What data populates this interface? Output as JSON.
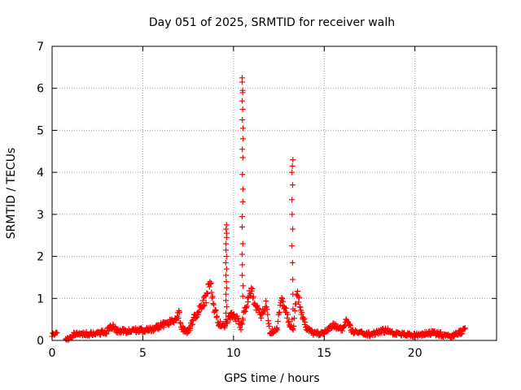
{
  "chart_data": {
    "type": "scatter",
    "title": "Day 051 of 2025, SRMTID for receiver walh",
    "xlabel": "GPS time / hours",
    "ylabel": "SRMTID / TECUs",
    "xlim": [
      0,
      24.5
    ],
    "ylim": [
      0,
      7
    ],
    "xticks": [
      0,
      5,
      10,
      15,
      20
    ],
    "yticks": [
      0,
      1,
      2,
      3,
      4,
      5,
      6,
      7
    ],
    "grid": true,
    "marker": "+",
    "color": "#ff0000",
    "series": [
      {
        "name": "SRMTID",
        "profile": [
          [
            0.0,
            0.15
          ],
          [
            0.2,
            0.18
          ],
          [
            0.8,
            0.02
          ],
          [
            1.2,
            0.15
          ],
          [
            2.0,
            0.16
          ],
          [
            3.0,
            0.2
          ],
          [
            3.3,
            0.35
          ],
          [
            3.6,
            0.22
          ],
          [
            4.5,
            0.24
          ],
          [
            5.5,
            0.25
          ],
          [
            6.0,
            0.35
          ],
          [
            6.5,
            0.45
          ],
          [
            6.8,
            0.5
          ],
          [
            7.0,
            0.65
          ],
          [
            7.1,
            0.3
          ],
          [
            7.5,
            0.2
          ],
          [
            7.9,
            0.6
          ],
          [
            8.2,
            0.8
          ],
          [
            8.5,
            1.0
          ],
          [
            8.7,
            1.4
          ],
          [
            8.9,
            0.8
          ],
          [
            9.2,
            0.4
          ],
          [
            9.5,
            0.35
          ],
          [
            9.9,
            0.6
          ],
          [
            10.2,
            0.5
          ],
          [
            10.4,
            0.3
          ],
          [
            10.8,
            1.0
          ],
          [
            11.0,
            1.2
          ],
          [
            11.2,
            0.8
          ],
          [
            11.5,
            0.6
          ],
          [
            11.8,
            0.9
          ],
          [
            12.0,
            0.2
          ],
          [
            12.4,
            0.25
          ],
          [
            12.6,
            0.95
          ],
          [
            12.9,
            0.7
          ],
          [
            13.1,
            0.35
          ],
          [
            13.3,
            0.25
          ],
          [
            13.5,
            1.2
          ],
          [
            13.7,
            0.7
          ],
          [
            14.0,
            0.3
          ],
          [
            14.5,
            0.15
          ],
          [
            15.0,
            0.2
          ],
          [
            15.5,
            0.35
          ],
          [
            16.0,
            0.25
          ],
          [
            16.2,
            0.45
          ],
          [
            16.6,
            0.2
          ],
          [
            17.5,
            0.15
          ],
          [
            18.0,
            0.2
          ],
          [
            18.5,
            0.25
          ],
          [
            19.0,
            0.15
          ],
          [
            20.0,
            0.12
          ],
          [
            21.0,
            0.18
          ],
          [
            22.0,
            0.1
          ],
          [
            22.5,
            0.2
          ],
          [
            22.8,
            0.25
          ]
        ],
        "spikes": [
          {
            "x": 9.6,
            "y_values": [
              2.75,
              2.65,
              2.55,
              2.45,
              2.3,
              2.15,
              2.0,
              1.85,
              1.7,
              1.55,
              1.4,
              1.25,
              1.1,
              0.95,
              0.8,
              0.65,
              0.5
            ]
          },
          {
            "x": 10.5,
            "y_values": [
              6.25,
              6.15,
              5.95,
              5.9,
              5.7,
              5.5,
              5.25,
              5.05,
              4.8,
              4.55,
              4.35,
              3.95,
              3.6,
              3.3,
              2.95,
              2.7,
              2.3,
              2.05,
              1.8,
              1.55,
              1.3,
              1.05
            ]
          },
          {
            "x": 13.25,
            "y_values": [
              4.3,
              4.15,
              4.0,
              3.7,
              3.35,
              3.0,
              2.65,
              2.25,
              1.85,
              1.45,
              1.1,
              0.75,
              0.5
            ]
          }
        ]
      }
    ]
  }
}
